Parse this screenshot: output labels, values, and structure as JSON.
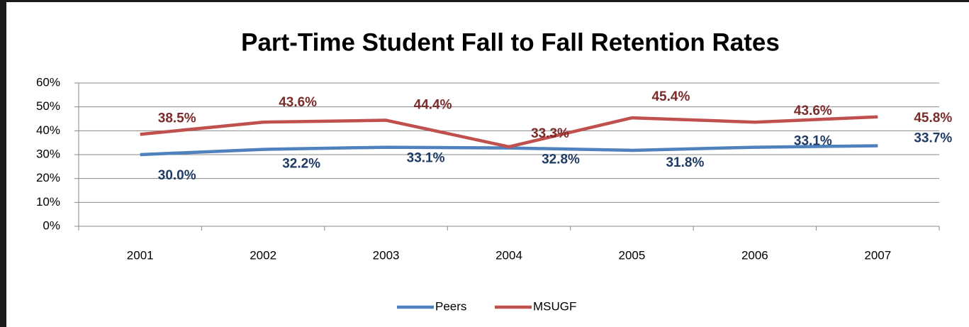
{
  "chart_data": {
    "type": "line",
    "title": "Part-Time Student Fall to Fall Retention Rates",
    "categories": [
      "2001",
      "2002",
      "2003",
      "2004",
      "2005",
      "2006",
      "2007"
    ],
    "series": [
      {
        "name": "Peers",
        "color": "#4f81bd",
        "label_color": "#1f3b64",
        "values": [
          30.0,
          32.2,
          33.1,
          32.8,
          31.8,
          33.1,
          33.7
        ],
        "value_labels": [
          "30.0%",
          "32.2%",
          "33.1%",
          "32.8%",
          "31.8%",
          "33.1%",
          "33.7%"
        ]
      },
      {
        "name": "MSUGF",
        "color": "#c0504d",
        "label_color": "#7b2c2a",
        "values": [
          38.5,
          43.6,
          44.4,
          33.3,
          45.4,
          43.6,
          45.8
        ],
        "value_labels": [
          "38.5%",
          "43.6%",
          "44.4%",
          "33.3%",
          "45.4%",
          "43.6%",
          "45.8%"
        ]
      }
    ],
    "ylim": [
      0,
      60
    ],
    "yticks": [
      {
        "value": 0,
        "label": "0%"
      },
      {
        "value": 10,
        "label": "10%"
      },
      {
        "value": 20,
        "label": "20%"
      },
      {
        "value": 30,
        "label": "30%"
      },
      {
        "value": 40,
        "label": "40%"
      },
      {
        "value": 50,
        "label": "50%"
      },
      {
        "value": 60,
        "label": "60%"
      }
    ],
    "grid": true,
    "legend": "bottom"
  }
}
